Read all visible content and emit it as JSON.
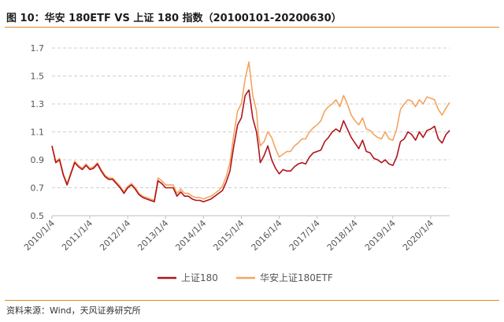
{
  "header": {
    "title": "图 10：华安 180ETF VS 上证 180 指数（20100101-20200630）"
  },
  "footer": {
    "source": "资料来源：Wind，天风证券研究所"
  },
  "chart_data": {
    "type": "line",
    "title": "华安 180ETF VS 上证 180 指数（20100101-20200630）",
    "xlabel": "",
    "ylabel": "",
    "ylim": [
      0.5,
      1.7
    ],
    "yticks": [
      0.5,
      0.7,
      0.9,
      1.1,
      1.3,
      1.5,
      1.7
    ],
    "ytick_labels": [
      "0.5",
      "0.7",
      "0.9",
      "1.1",
      "1.3",
      "1.5",
      "1.7"
    ],
    "xlim": [
      0,
      10.5
    ],
    "xticks": [
      0,
      1,
      2,
      3,
      4,
      5,
      6,
      7,
      8,
      9,
      10
    ],
    "xtick_labels": [
      "2010/1/4",
      "2011/1/4",
      "2012/1/4",
      "2013/1/4",
      "2014/1/4",
      "2015/1/4",
      "2016/1/4",
      "2017/1/4",
      "2018/1/4",
      "2019/1/4",
      "2020/1/4"
    ],
    "grid": "horizontal-dashed",
    "legend_position": "bottom-center",
    "series": [
      {
        "name": "上证180",
        "color": "#b0141b",
        "x": [
          0,
          0.1,
          0.2,
          0.3,
          0.4,
          0.5,
          0.6,
          0.7,
          0.8,
          0.9,
          1.0,
          1.1,
          1.2,
          1.3,
          1.4,
          1.5,
          1.6,
          1.7,
          1.8,
          1.9,
          2.0,
          2.1,
          2.2,
          2.3,
          2.4,
          2.5,
          2.6,
          2.7,
          2.8,
          2.9,
          3.0,
          3.1,
          3.2,
          3.3,
          3.4,
          3.5,
          3.6,
          3.7,
          3.8,
          3.9,
          4.0,
          4.1,
          4.2,
          4.3,
          4.4,
          4.5,
          4.6,
          4.7,
          4.8,
          4.9,
          5.0,
          5.1,
          5.2,
          5.3,
          5.4,
          5.45,
          5.5,
          5.6,
          5.7,
          5.8,
          5.9,
          6.0,
          6.1,
          6.2,
          6.3,
          6.4,
          6.5,
          6.6,
          6.7,
          6.8,
          6.9,
          7.0,
          7.1,
          7.2,
          7.3,
          7.4,
          7.5,
          7.6,
          7.7,
          7.8,
          7.9,
          8.0,
          8.1,
          8.2,
          8.3,
          8.4,
          8.5,
          8.6,
          8.7,
          8.8,
          8.9,
          9.0,
          9.1,
          9.2,
          9.3,
          9.4,
          9.5,
          9.6,
          9.7,
          9.8,
          9.9,
          10.0,
          10.1,
          10.2,
          10.3,
          10.4,
          10.5
        ],
        "values": [
          1.0,
          0.88,
          0.9,
          0.79,
          0.72,
          0.8,
          0.88,
          0.85,
          0.83,
          0.86,
          0.83,
          0.84,
          0.87,
          0.82,
          0.78,
          0.76,
          0.76,
          0.73,
          0.7,
          0.66,
          0.7,
          0.72,
          0.69,
          0.65,
          0.63,
          0.62,
          0.61,
          0.6,
          0.75,
          0.73,
          0.7,
          0.7,
          0.7,
          0.64,
          0.67,
          0.64,
          0.64,
          0.62,
          0.61,
          0.61,
          0.6,
          0.61,
          0.62,
          0.64,
          0.66,
          0.68,
          0.74,
          0.82,
          1.0,
          1.15,
          1.2,
          1.36,
          1.4,
          1.2,
          1.1,
          1.0,
          0.88,
          0.93,
          1.0,
          0.9,
          0.84,
          0.8,
          0.83,
          0.82,
          0.82,
          0.85,
          0.87,
          0.88,
          0.87,
          0.92,
          0.95,
          0.96,
          0.97,
          1.03,
          1.06,
          1.1,
          1.12,
          1.1,
          1.18,
          1.12,
          1.06,
          1.02,
          0.98,
          1.04,
          0.96,
          0.95,
          0.91,
          0.9,
          0.88,
          0.9,
          0.87,
          0.86,
          0.92,
          1.03,
          1.05,
          1.1,
          1.08,
          1.04,
          1.1,
          1.06,
          1.11,
          1.12,
          1.14,
          1.05,
          1.02,
          1.08,
          1.11
        ]
      },
      {
        "name": "华安上证180ETF",
        "color": "#f4a460",
        "x": [
          0,
          0.1,
          0.2,
          0.3,
          0.4,
          0.5,
          0.6,
          0.7,
          0.8,
          0.9,
          1.0,
          1.1,
          1.2,
          1.3,
          1.4,
          1.5,
          1.6,
          1.7,
          1.8,
          1.9,
          2.0,
          2.1,
          2.2,
          2.3,
          2.4,
          2.5,
          2.6,
          2.7,
          2.8,
          2.9,
          3.0,
          3.1,
          3.2,
          3.3,
          3.4,
          3.5,
          3.6,
          3.7,
          3.8,
          3.9,
          4.0,
          4.1,
          4.2,
          4.3,
          4.4,
          4.5,
          4.6,
          4.7,
          4.8,
          4.9,
          5.0,
          5.1,
          5.2,
          5.3,
          5.4,
          5.45,
          5.5,
          5.6,
          5.7,
          5.8,
          5.9,
          6.0,
          6.1,
          6.2,
          6.3,
          6.4,
          6.5,
          6.6,
          6.7,
          6.8,
          6.9,
          7.0,
          7.1,
          7.2,
          7.3,
          7.4,
          7.5,
          7.6,
          7.7,
          7.8,
          7.9,
          8.0,
          8.1,
          8.2,
          8.3,
          8.4,
          8.5,
          8.6,
          8.7,
          8.8,
          8.9,
          9.0,
          9.1,
          9.2,
          9.3,
          9.4,
          9.5,
          9.6,
          9.7,
          9.8,
          9.9,
          10.0,
          10.1,
          10.2,
          10.3,
          10.4,
          10.5
        ],
        "values": [
          1.0,
          0.89,
          0.91,
          0.8,
          0.73,
          0.81,
          0.89,
          0.86,
          0.84,
          0.87,
          0.84,
          0.85,
          0.88,
          0.83,
          0.79,
          0.77,
          0.77,
          0.74,
          0.71,
          0.67,
          0.71,
          0.73,
          0.7,
          0.66,
          0.64,
          0.63,
          0.62,
          0.61,
          0.77,
          0.75,
          0.72,
          0.72,
          0.72,
          0.66,
          0.69,
          0.66,
          0.66,
          0.64,
          0.63,
          0.63,
          0.62,
          0.63,
          0.64,
          0.66,
          0.68,
          0.71,
          0.78,
          0.88,
          1.08,
          1.25,
          1.3,
          1.48,
          1.6,
          1.36,
          1.25,
          1.08,
          1.0,
          1.03,
          1.1,
          1.06,
          0.98,
          0.92,
          0.94,
          0.96,
          0.96,
          1.0,
          1.02,
          1.05,
          1.05,
          1.1,
          1.13,
          1.15,
          1.18,
          1.25,
          1.28,
          1.3,
          1.33,
          1.28,
          1.36,
          1.3,
          1.22,
          1.18,
          1.15,
          1.2,
          1.12,
          1.11,
          1.08,
          1.06,
          1.05,
          1.1,
          1.05,
          1.04,
          1.12,
          1.26,
          1.3,
          1.33,
          1.32,
          1.28,
          1.33,
          1.3,
          1.35,
          1.34,
          1.33,
          1.26,
          1.22,
          1.27,
          1.31
        ]
      }
    ]
  }
}
